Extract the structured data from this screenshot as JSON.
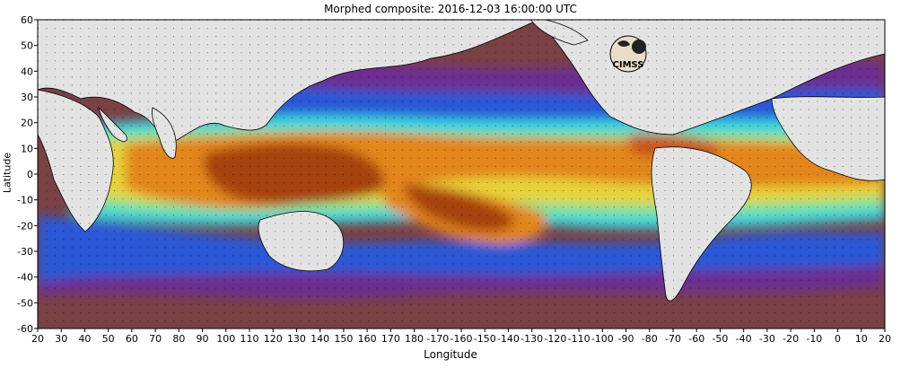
{
  "title": "Morphed composite: 2016-12-03 16:00:00 UTC",
  "axes": {
    "ylabel": "Latitude",
    "xlabel": "Longitude",
    "lat_ticks": [
      "60",
      "50",
      "40",
      "30",
      "20",
      "10",
      "0",
      "-10",
      "-20",
      "-30",
      "-40",
      "-50",
      "-60"
    ],
    "lon_ticks": [
      "20",
      "30",
      "40",
      "50",
      "60",
      "70",
      "80",
      "90",
      "100",
      "110",
      "120",
      "130",
      "140",
      "150",
      "160",
      "170",
      "180",
      "-170",
      "-160",
      "-150",
      "-140",
      "-130",
      "-120",
      "-110",
      "-100",
      "-90",
      "-80",
      "-70",
      "-60",
      "-50",
      "-40",
      "-30",
      "-20",
      "-10",
      "0",
      "10",
      "20"
    ]
  },
  "logo": {
    "text": "CIMSS"
  },
  "colors": {
    "land": "#e3e3e3",
    "background": "#7b3f42",
    "purple": "#6a2f8f",
    "blue": "#2e5bd8",
    "cyan": "#35d6e6",
    "green": "#66e0a3",
    "yellow": "#e8d23a",
    "orange": "#e58a1a",
    "dark_orange": "#b3490f"
  }
}
